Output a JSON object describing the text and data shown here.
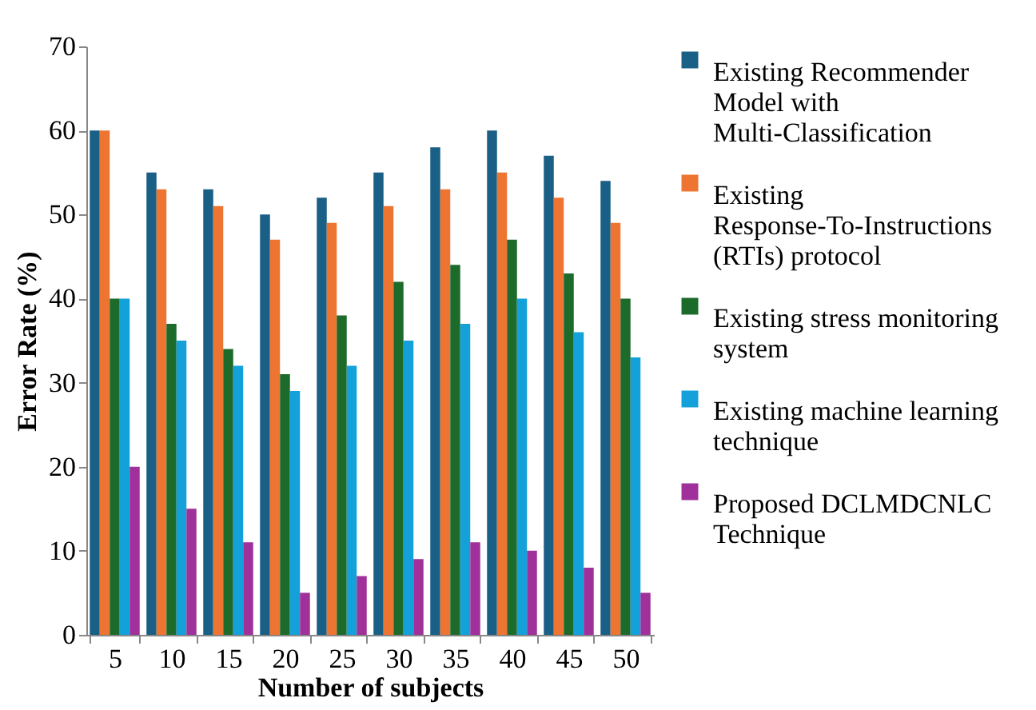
{
  "chart_data": {
    "type": "bar",
    "xlabel": "Number of subjects",
    "ylabel": "Error Rate (%)",
    "categories": [
      "5",
      "10",
      "15",
      "20",
      "25",
      "30",
      "35",
      "40",
      "45",
      "50"
    ],
    "series": [
      {
        "name": "Existing Recommender Model with Multi-Classification",
        "color": "#1a5f85",
        "values": [
          60,
          55,
          53,
          50,
          52,
          55,
          58,
          60,
          57,
          54
        ]
      },
      {
        "name": "Existing Response-To-Instructions (RTIs) protocol",
        "color": "#ed7531",
        "values": [
          60,
          53,
          51,
          47,
          49,
          51,
          53,
          55,
          52,
          49
        ]
      },
      {
        "name": "Existing stress monitoring system",
        "color": "#1d6b2b",
        "values": [
          40,
          37,
          34,
          31,
          38,
          42,
          44,
          47,
          43,
          40
        ]
      },
      {
        "name": "Existing machine learning technique",
        "color": "#14a0d8",
        "values": [
          40,
          35,
          32,
          29,
          32,
          35,
          37,
          40,
          36,
          33
        ]
      },
      {
        "name": "Proposed DCLMDCNLC Technique",
        "color": "#a0309a",
        "values": [
          20,
          15,
          11,
          5,
          7,
          9,
          11,
          10,
          8,
          5
        ]
      }
    ],
    "ylim": [
      0,
      70
    ],
    "yticks": [
      0,
      10,
      20,
      30,
      40,
      50,
      60,
      70
    ],
    "grid": false,
    "legend": "right"
  }
}
